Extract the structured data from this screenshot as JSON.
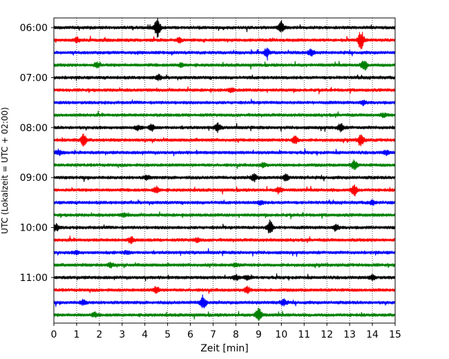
{
  "chart_data": {
    "type": "line",
    "title": "",
    "xlabel": "Zeit  [min]",
    "ylabel": "UTC (Lokalzeit = UTC + 02:00)",
    "xlim": [
      0,
      15
    ],
    "x_ticks": [
      "0",
      "1",
      "2",
      "3",
      "4",
      "5",
      "6",
      "7",
      "8",
      "9",
      "10",
      "11",
      "12",
      "13",
      "14",
      "15"
    ],
    "y_ticks": [
      "06:00",
      "07:00",
      "08:00",
      "09:00",
      "10:00",
      "11:00"
    ],
    "grid": "vertical dotted",
    "trace_interval_minutes": 15,
    "trace_colors": [
      "#000000",
      "#ff0000",
      "#0000ff",
      "#008000"
    ],
    "series": [
      {
        "start": "06:00",
        "color": "#000000",
        "events": [
          [
            4.55,
            1.0
          ],
          [
            10.0,
            0.6
          ]
        ]
      },
      {
        "start": "06:15",
        "color": "#ff0000",
        "events": [
          [
            13.5,
            1.0
          ],
          [
            1.0,
            0.2
          ],
          [
            5.5,
            0.2
          ]
        ]
      },
      {
        "start": "06:30",
        "color": "#0000ff",
        "events": [
          [
            9.35,
            0.5
          ],
          [
            11.3,
            0.3
          ]
        ]
      },
      {
        "start": "06:45",
        "color": "#008000",
        "events": [
          [
            13.65,
            0.55
          ],
          [
            1.9,
            0.25
          ],
          [
            5.6,
            0.2
          ]
        ]
      },
      {
        "start": "07:00",
        "color": "#000000",
        "events": [
          [
            4.6,
            0.25
          ]
        ]
      },
      {
        "start": "07:15",
        "color": "#ff0000",
        "events": [
          [
            7.8,
            0.2
          ]
        ]
      },
      {
        "start": "07:30",
        "color": "#0000ff",
        "events": [
          [
            13.6,
            0.2
          ]
        ]
      },
      {
        "start": "07:45",
        "color": "#008000",
        "events": [
          [
            14.5,
            0.15
          ]
        ]
      },
      {
        "start": "08:00",
        "color": "#000000",
        "events": [
          [
            7.2,
            0.4
          ],
          [
            12.6,
            0.4
          ],
          [
            4.3,
            0.3
          ],
          [
            3.7,
            0.2
          ]
        ]
      },
      {
        "start": "08:15",
        "color": "#ff0000",
        "events": [
          [
            1.3,
            0.65
          ],
          [
            10.6,
            0.4
          ],
          [
            13.5,
            0.65
          ]
        ]
      },
      {
        "start": "08:30",
        "color": "#0000ff",
        "events": [
          [
            0.2,
            0.25
          ],
          [
            14.6,
            0.2
          ]
        ]
      },
      {
        "start": "08:45",
        "color": "#008000",
        "events": [
          [
            13.2,
            0.5
          ],
          [
            9.2,
            0.2
          ]
        ]
      },
      {
        "start": "09:00",
        "color": "#000000",
        "events": [
          [
            8.8,
            0.4
          ],
          [
            10.2,
            0.35
          ],
          [
            4.1,
            0.2
          ]
        ]
      },
      {
        "start": "09:15",
        "color": "#ff0000",
        "events": [
          [
            4.5,
            0.35
          ],
          [
            9.9,
            0.3
          ],
          [
            13.2,
            0.55
          ]
        ]
      },
      {
        "start": "09:30",
        "color": "#0000ff",
        "events": [
          [
            9.1,
            0.2
          ],
          [
            14.0,
            0.2
          ]
        ]
      },
      {
        "start": "09:45",
        "color": "#008000",
        "events": [
          [
            3.1,
            0.15
          ]
        ]
      },
      {
        "start": "10:00",
        "color": "#000000",
        "events": [
          [
            9.5,
            0.7
          ],
          [
            0.1,
            0.35
          ],
          [
            12.4,
            0.3
          ]
        ]
      },
      {
        "start": "10:15",
        "color": "#ff0000",
        "events": [
          [
            3.4,
            0.3
          ],
          [
            6.3,
            0.2
          ]
        ]
      },
      {
        "start": "10:30",
        "color": "#0000ff",
        "events": [
          [
            1.0,
            0.15
          ],
          [
            3.2,
            0.15
          ]
        ]
      },
      {
        "start": "10:45",
        "color": "#008000",
        "events": [
          [
            2.5,
            0.2
          ],
          [
            8.0,
            0.15
          ]
        ]
      },
      {
        "start": "11:00",
        "color": "#000000",
        "events": [
          [
            8.0,
            0.25
          ],
          [
            14.0,
            0.25
          ],
          [
            8.5,
            0.2
          ]
        ]
      },
      {
        "start": "11:15",
        "color": "#ff0000",
        "events": [
          [
            4.5,
            0.35
          ],
          [
            8.5,
            0.35
          ]
        ]
      },
      {
        "start": "11:30",
        "color": "#0000ff",
        "events": [
          [
            6.55,
            0.75
          ],
          [
            10.1,
            0.3
          ],
          [
            1.3,
            0.25
          ]
        ]
      },
      {
        "start": "11:45",
        "color": "#008000",
        "events": [
          [
            9.0,
            0.8
          ],
          [
            1.8,
            0.2
          ]
        ]
      }
    ]
  }
}
